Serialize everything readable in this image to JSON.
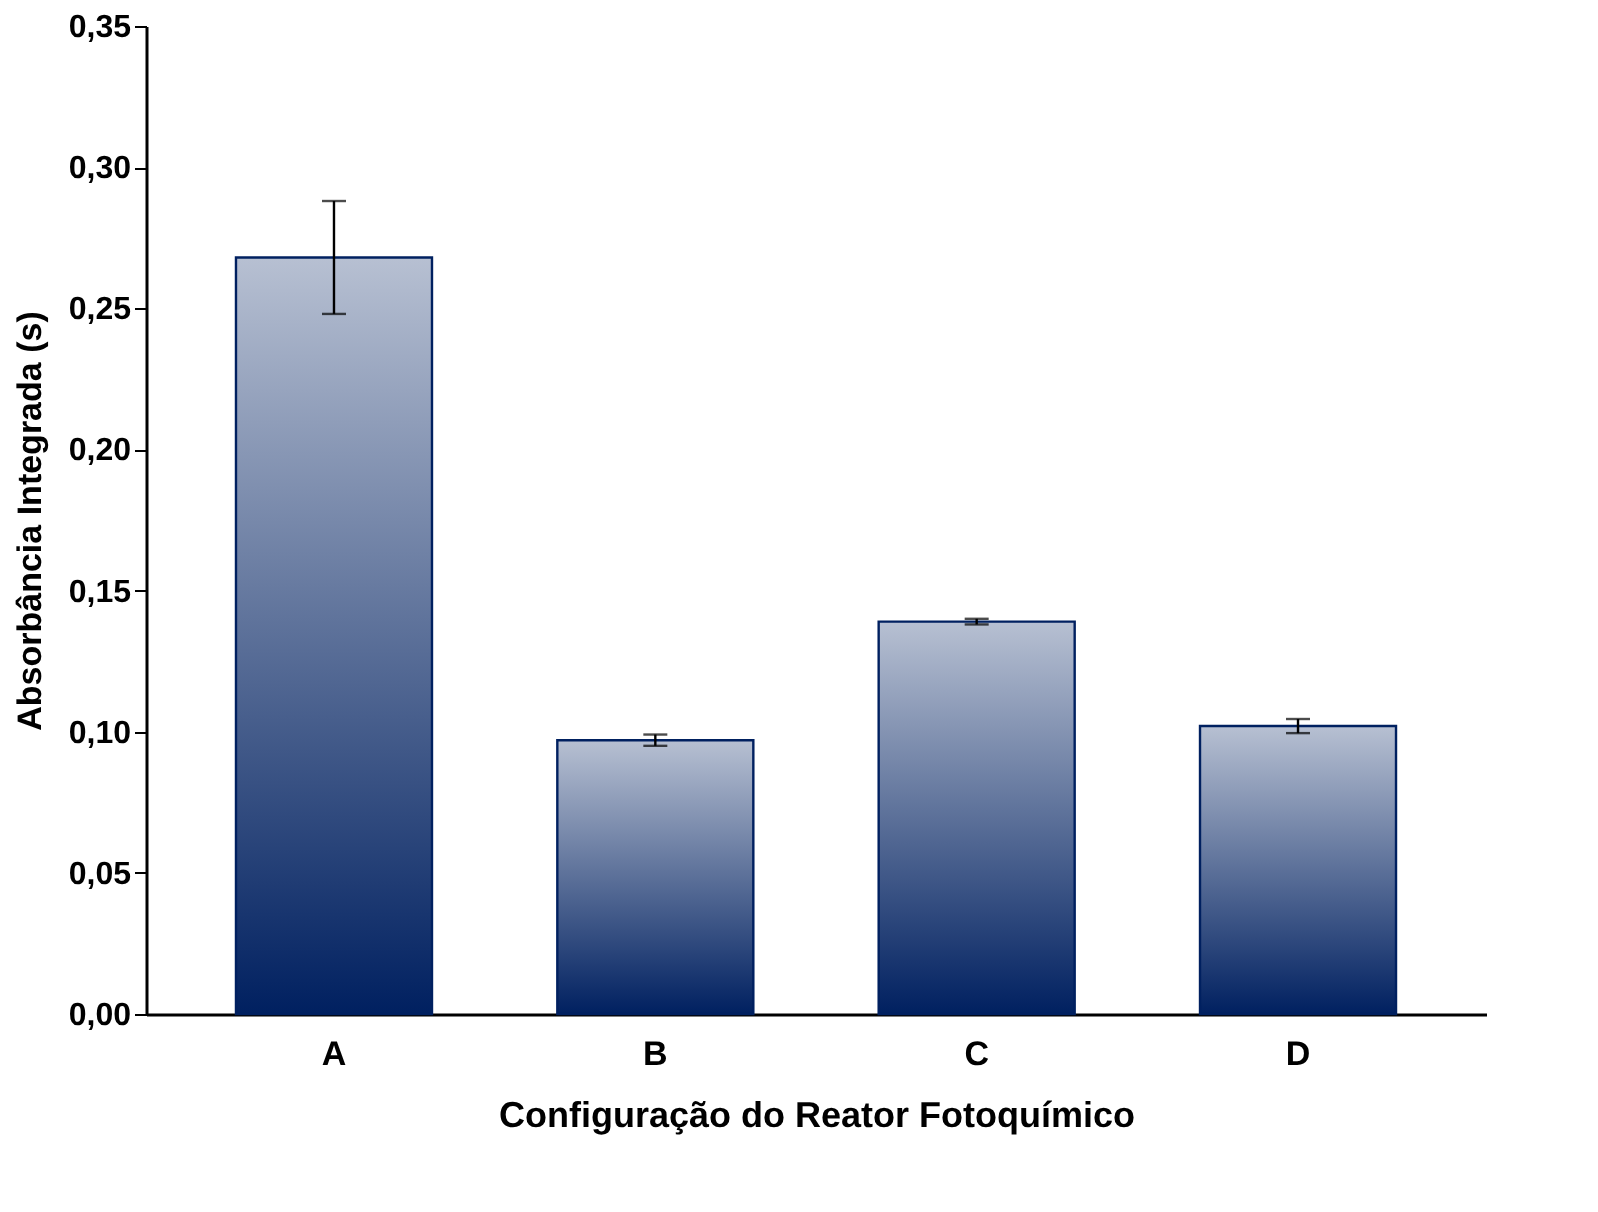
{
  "chart_data": {
    "type": "bar",
    "xlabel": "Configuração do Reator Fotoquímico",
    "ylabel": "Absorbância Integrada (s)",
    "categories": [
      "A",
      "B",
      "C",
      "D"
    ],
    "values": [
      0.268,
      0.097,
      0.139,
      0.102
    ],
    "errors": [
      0.02,
      0.002,
      0.001,
      0.0025
    ],
    "color": "#002060",
    "ylim": [
      0,
      0.35
    ],
    "yticks": [
      {
        "value": 0,
        "label": "0,00"
      },
      {
        "value": 0.05,
        "label": "0,05"
      },
      {
        "value": 0.1,
        "label": "0,10"
      },
      {
        "value": 0.15,
        "label": "0,15"
      },
      {
        "value": 0.2,
        "label": "0,20"
      },
      {
        "value": 0.25,
        "label": "0,25"
      },
      {
        "value": 0.3,
        "label": "0,30"
      },
      {
        "value": 0.35,
        "label": "0,35"
      }
    ],
    "grid": false
  }
}
